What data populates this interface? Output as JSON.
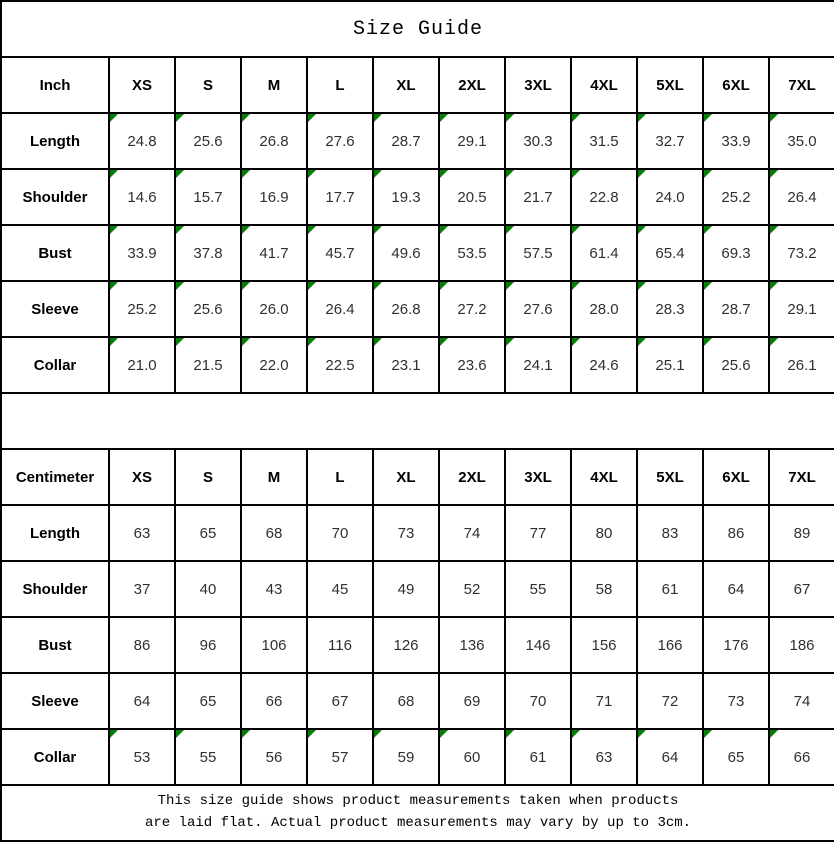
{
  "title": "Size Guide",
  "colors": {
    "flag_green": "#008000",
    "grid_black": "#000000",
    "value_text": "#303030"
  },
  "icons": {
    "corner_flag": "small green right-triangle marker in top-left corner of cell"
  },
  "chart_data": [
    {
      "type": "table",
      "name": "inch-size-table",
      "unit_label": "Inch",
      "columns": [
        "XS",
        "S",
        "M",
        "L",
        "XL",
        "2XL",
        "3XL",
        "4XL",
        "5XL",
        "6XL",
        "7XL"
      ],
      "rows": [
        {
          "label": "Length",
          "values": [
            "24.8",
            "25.6",
            "26.8",
            "27.6",
            "28.7",
            "29.1",
            "30.3",
            "31.5",
            "32.7",
            "33.9",
            "35.0"
          ],
          "flagged": true
        },
        {
          "label": "Shoulder",
          "values": [
            "14.6",
            "15.7",
            "16.9",
            "17.7",
            "19.3",
            "20.5",
            "21.7",
            "22.8",
            "24.0",
            "25.2",
            "26.4"
          ],
          "flagged": true
        },
        {
          "label": "Bust",
          "values": [
            "33.9",
            "37.8",
            "41.7",
            "45.7",
            "49.6",
            "53.5",
            "57.5",
            "61.4",
            "65.4",
            "69.3",
            "73.2"
          ],
          "flagged": true
        },
        {
          "label": "Sleeve",
          "values": [
            "25.2",
            "25.6",
            "26.0",
            "26.4",
            "26.8",
            "27.2",
            "27.6",
            "28.0",
            "28.3",
            "28.7",
            "29.1"
          ],
          "flagged": true
        },
        {
          "label": "Collar",
          "values": [
            "21.0",
            "21.5",
            "22.0",
            "22.5",
            "23.1",
            "23.6",
            "24.1",
            "24.6",
            "25.1",
            "25.6",
            "26.1"
          ],
          "flagged": true
        }
      ]
    },
    {
      "type": "table",
      "name": "centimeter-size-table",
      "unit_label": "Centimeter",
      "columns": [
        "XS",
        "S",
        "M",
        "L",
        "XL",
        "2XL",
        "3XL",
        "4XL",
        "5XL",
        "6XL",
        "7XL"
      ],
      "rows": [
        {
          "label": "Length",
          "values": [
            "63",
            "65",
            "68",
            "70",
            "73",
            "74",
            "77",
            "80",
            "83",
            "86",
            "89"
          ],
          "flagged": false
        },
        {
          "label": "Shoulder",
          "values": [
            "37",
            "40",
            "43",
            "45",
            "49",
            "52",
            "55",
            "58",
            "61",
            "64",
            "67"
          ],
          "flagged": false
        },
        {
          "label": "Bust",
          "values": [
            "86",
            "96",
            "106",
            "116",
            "126",
            "136",
            "146",
            "156",
            "166",
            "176",
            "186"
          ],
          "flagged": false
        },
        {
          "label": "Sleeve",
          "values": [
            "64",
            "65",
            "66",
            "67",
            "68",
            "69",
            "70",
            "71",
            "72",
            "73",
            "74"
          ],
          "flagged": false
        },
        {
          "label": "Collar",
          "values": [
            "53",
            "55",
            "56",
            "57",
            "59",
            "60",
            "61",
            "63",
            "64",
            "65",
            "66"
          ],
          "flagged": true
        }
      ]
    }
  ],
  "footer": {
    "line1": "This size guide shows product measurements taken when products",
    "line2": "are laid flat. Actual product measurements may vary by up to 3cm."
  }
}
